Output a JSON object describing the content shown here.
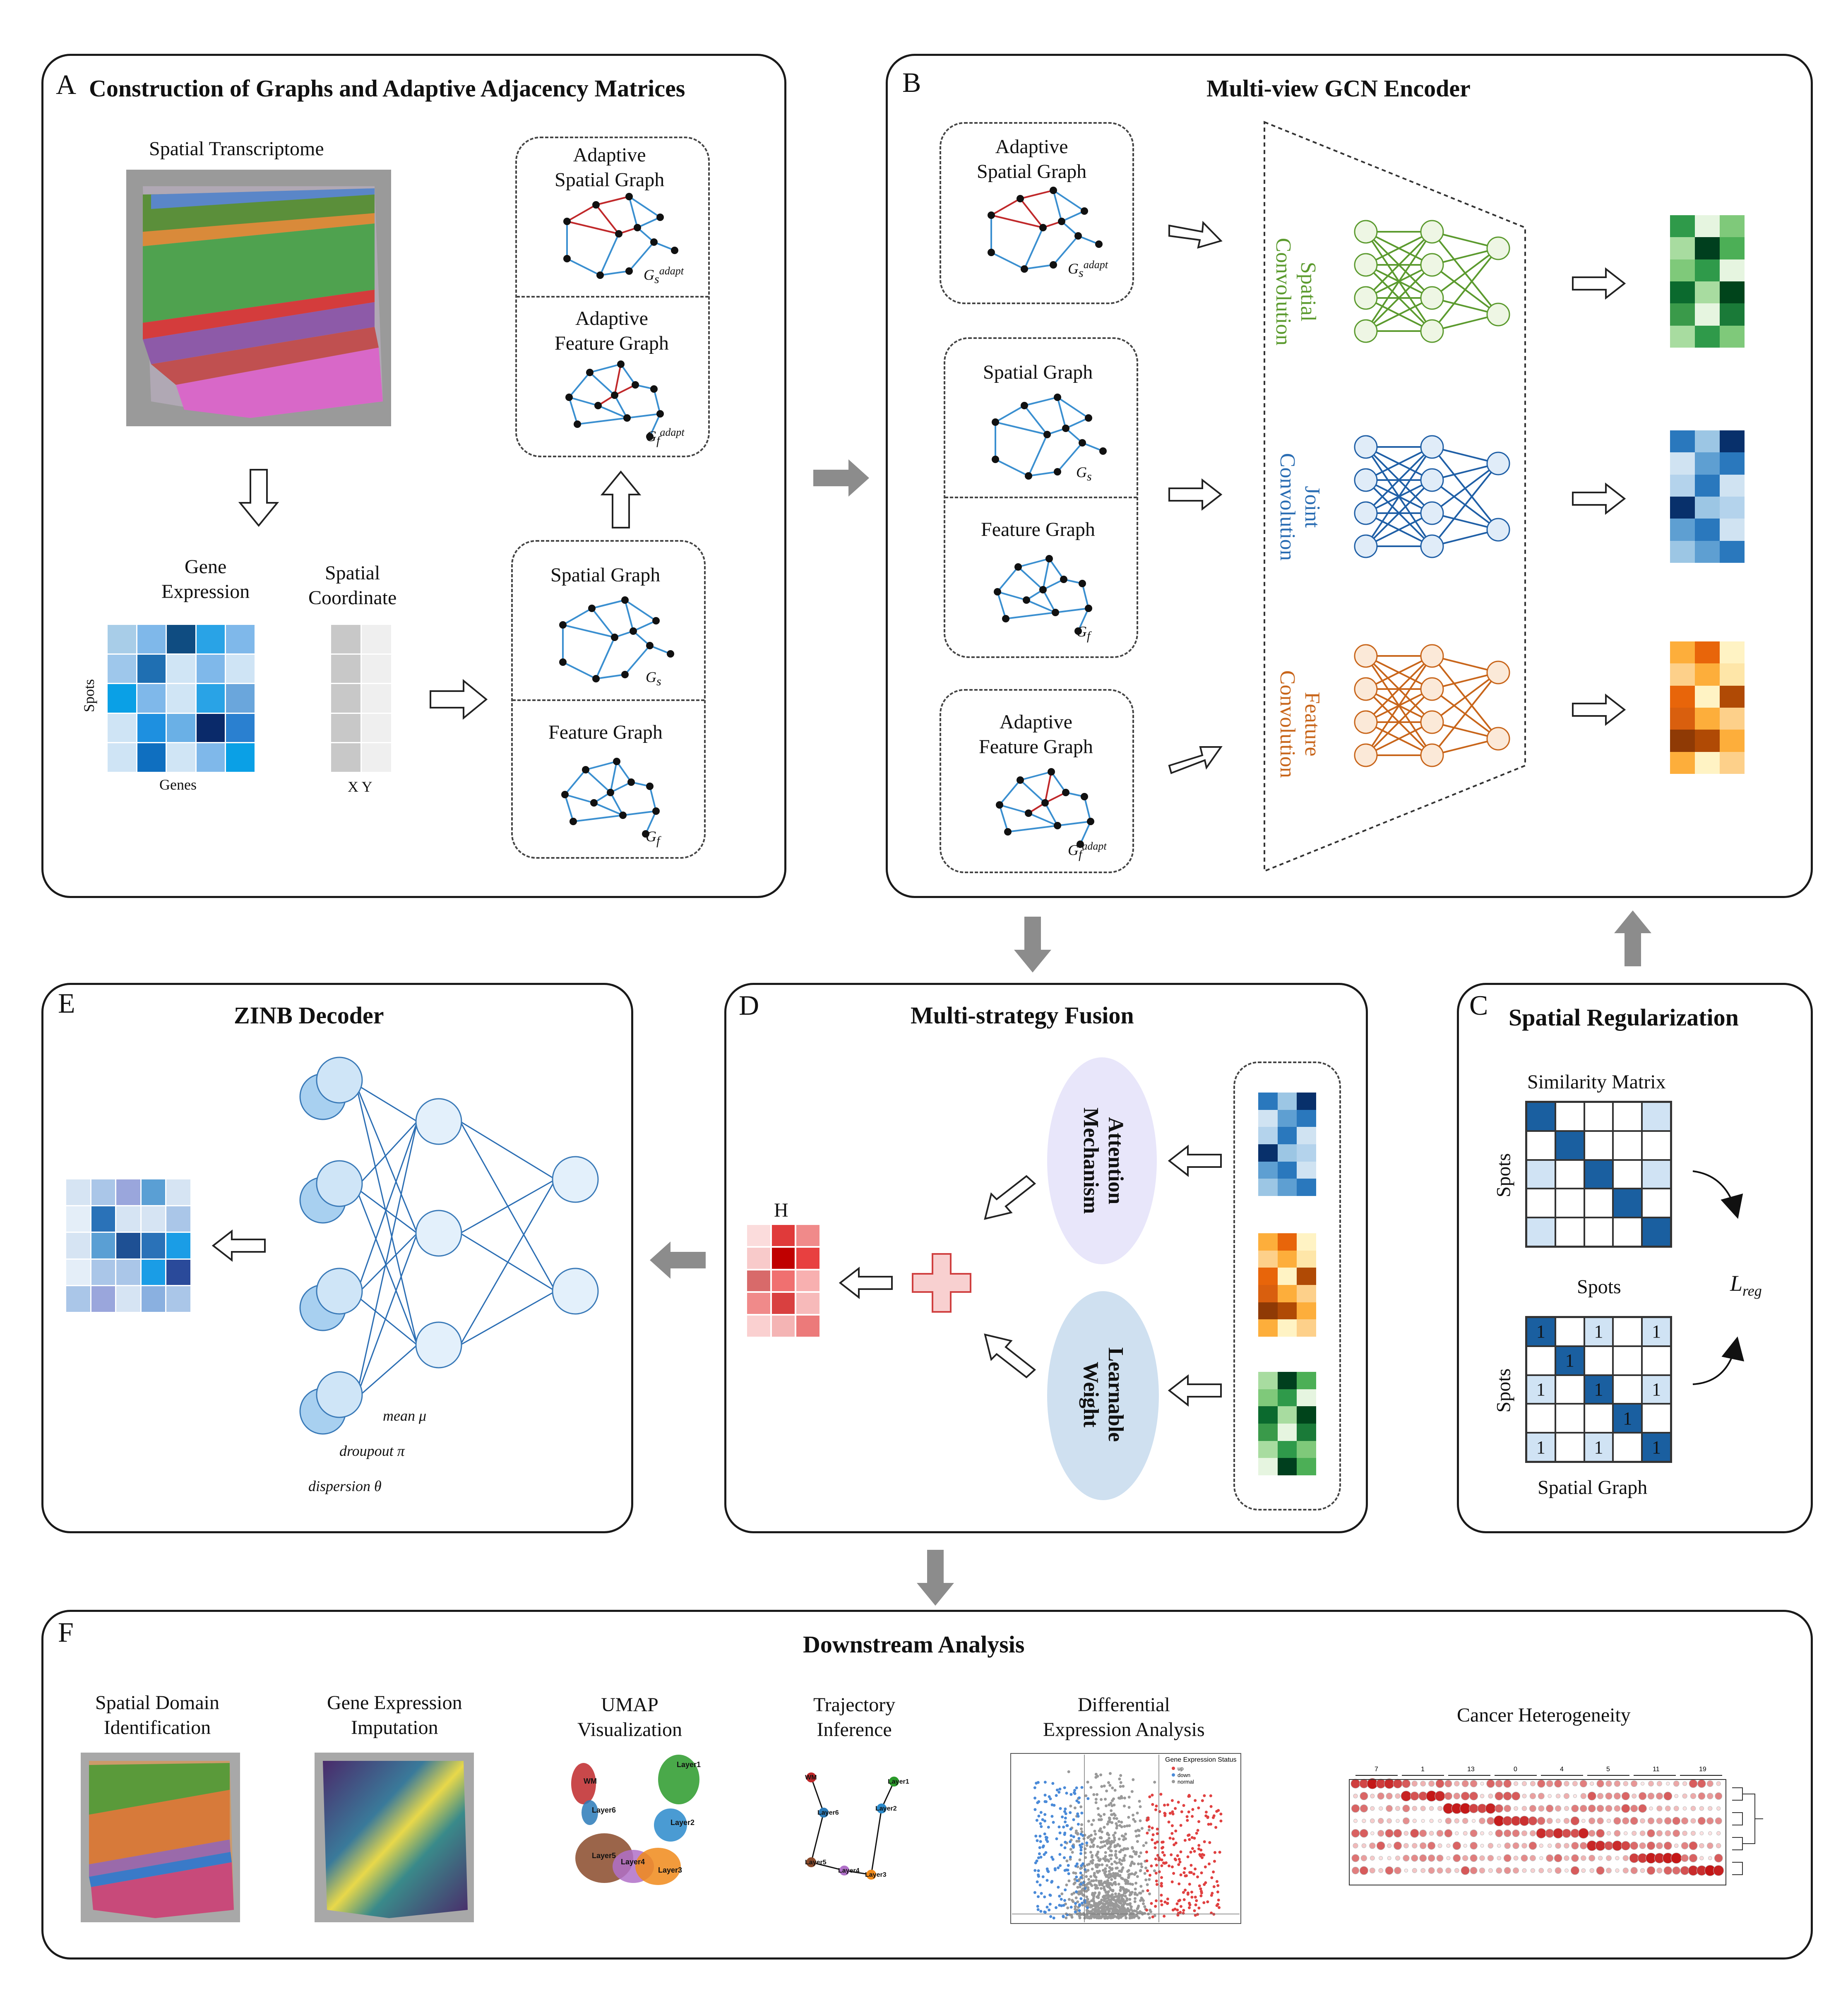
{
  "panel_a": {
    "letter": "A",
    "title": "Construction of Graphs and Adaptive Adjacency Matrices",
    "spatial_transcriptome": "Spatial Transcriptome",
    "gene_expression": "Gene\nExpression",
    "spatial_coordinate": "Spatial\nCoordinate",
    "spots": "Spots",
    "genes": "Genes",
    "xy": "X Y",
    "adaptive_spatial_graph": "Adaptive\nSpatial Graph",
    "adaptive_feature_graph": "Adaptive\nFeature Graph",
    "spatial_graph": "Spatial Graph",
    "feature_graph": "Feature Graph",
    "gs_adapt": "G",
    "gs_adapt_sub": "s",
    "gf_adapt_sub": "f",
    "adapt_sup": "adapt"
  },
  "panel_b": {
    "letter": "B",
    "title": "Multi-view GCN Encoder",
    "adaptive_spatial_graph": "Adaptive\nSpatial Graph",
    "spatial_graph": "Spatial Graph",
    "feature_graph": "Feature Graph",
    "adaptive_feature_graph": "Adaptive\nFeature Graph",
    "spatial_conv": "Spatial\nConvolution",
    "joint_conv": "Joint\nConvolution",
    "feature_conv": "Feature\nConvolution"
  },
  "panel_c": {
    "letter": "C",
    "title": "Spatial Regularization",
    "similarity_matrix": "Similarity Matrix",
    "spots": "Spots",
    "spots_top": "Spots",
    "spatial_graph": "Spatial Graph",
    "loss": "L",
    "loss_sub": "reg",
    "one": "1"
  },
  "panel_d": {
    "letter": "D",
    "title": "Multi-strategy Fusion",
    "h": "H",
    "attention": "Attention\nMechanism",
    "learnable": "Learnable\nWeight"
  },
  "panel_e": {
    "letter": "E",
    "title": "ZINB Decoder",
    "mean": "mean μ",
    "dropout": "droupout π",
    "dispersion": "dispersion θ"
  },
  "panel_f": {
    "letter": "F",
    "title": "Downstream Analysis",
    "items": [
      "Spatial Domain\nIdentification",
      "Gene Expression\nImputation",
      "UMAP\nVisualization",
      "Trajectory\nInference",
      "Differential\nExpression Analysis",
      "Cancer Heterogeneity"
    ],
    "umap_labels": [
      "WM",
      "Layer6",
      "Layer1",
      "Layer2",
      "Layer5",
      "Layer4",
      "Layer3"
    ],
    "traj_labels": [
      "WM",
      "Layer1",
      "Layer6",
      "Layer2",
      "Layer5",
      "Layer4",
      "Layer3"
    ],
    "volcano_legend_title": "Gene Expression Status",
    "volcano_legend": [
      "up",
      "down",
      "normal"
    ],
    "heatmap_clusters": [
      "7",
      "1",
      "13",
      "0",
      "4",
      "5",
      "11",
      "19"
    ]
  },
  "colors": {
    "green": "#5b9a2e",
    "blue": "#2a6db3",
    "orange": "#c8651a",
    "red": "#c0282a",
    "edge_blue": "#3a8fd0",
    "arrow_gray": "#8c8c8c"
  }
}
